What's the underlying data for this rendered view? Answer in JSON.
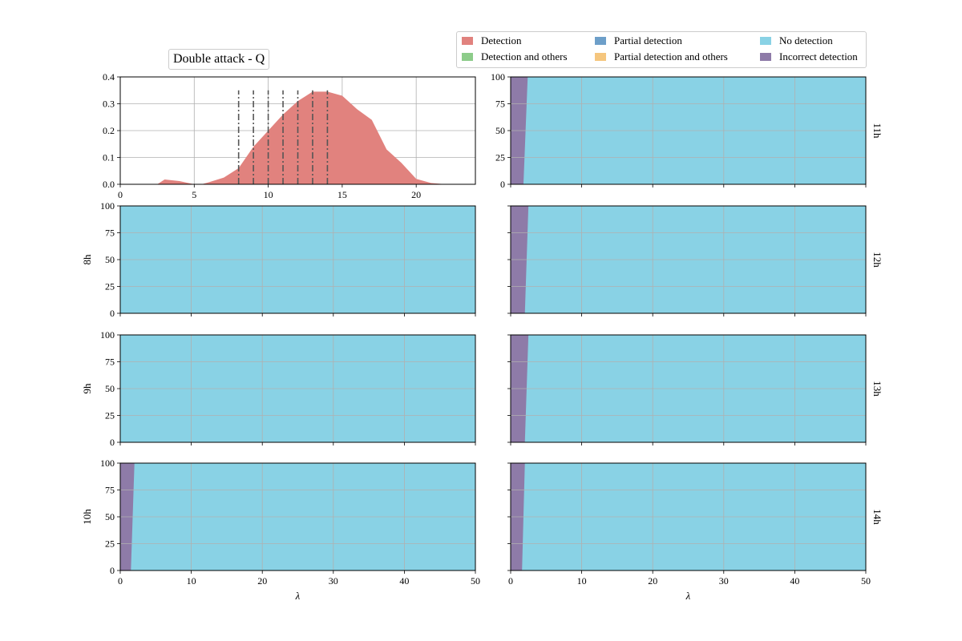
{
  "chart_data": {
    "type": "area",
    "title": "Double attack - Q",
    "legend": {
      "placement": "top-right",
      "entries": [
        {
          "label": "Detection",
          "color": "#e1827e"
        },
        {
          "label": "Detection and others",
          "color": "#8dcc8a"
        },
        {
          "label": "Partial detection",
          "color": "#6d9fc9"
        },
        {
          "label": "Partial detection and others",
          "color": "#f5c67e"
        },
        {
          "label": "No detection",
          "color": "#89d2e5"
        },
        {
          "label": "Incorrect detection",
          "color": "#8e7ba8"
        }
      ]
    },
    "distribution": {
      "type": "area",
      "color": "#e1827e",
      "xlim": [
        0,
        24
      ],
      "ylim": [
        0,
        0.4
      ],
      "xticks": [
        0,
        5,
        10,
        15,
        20
      ],
      "yticks": [
        "0.0",
        "0.1",
        "0.2",
        "0.3",
        "0.4"
      ],
      "x": [
        0,
        1,
        2,
        2.5,
        3,
        4,
        5,
        5.5,
        6,
        7,
        8,
        9,
        10,
        11,
        12,
        13,
        14,
        15,
        16,
        17,
        18,
        19,
        20,
        21,
        22,
        23
      ],
      "y": [
        0,
        0,
        0,
        0,
        0.018,
        0.012,
        0,
        0,
        0.008,
        0.025,
        0.06,
        0.14,
        0.2,
        0.26,
        0.31,
        0.345,
        0.345,
        0.33,
        0.28,
        0.24,
        0.13,
        0.08,
        0.02,
        0.005,
        0,
        0
      ],
      "vlines": [
        8,
        9,
        10,
        11,
        12,
        13,
        14
      ],
      "vline_top": 0.35
    },
    "panels": [
      {
        "label": "11h",
        "incorrect_start": 2.4,
        "incorrect_end": 1.8
      },
      {
        "label": "8h",
        "incorrect_start": 0,
        "incorrect_end": 0
      },
      {
        "label": "12h",
        "incorrect_start": 2.5,
        "incorrect_end": 2.0
      },
      {
        "label": "9h",
        "incorrect_start": 0,
        "incorrect_end": 0
      },
      {
        "label": "13h",
        "incorrect_start": 2.5,
        "incorrect_end": 2.0
      },
      {
        "label": "10h",
        "incorrect_start": 2.0,
        "incorrect_end": 1.5
      },
      {
        "label": "14h",
        "incorrect_start": 2.0,
        "incorrect_end": 1.6
      }
    ],
    "panel_axes": {
      "xlim": [
        0,
        50
      ],
      "ylim": [
        0,
        100
      ],
      "xticks": [
        0,
        10,
        20,
        30,
        40,
        50
      ],
      "yticks": [
        0,
        25,
        50,
        75,
        100
      ],
      "xlabel": "λ"
    },
    "grid": true
  }
}
